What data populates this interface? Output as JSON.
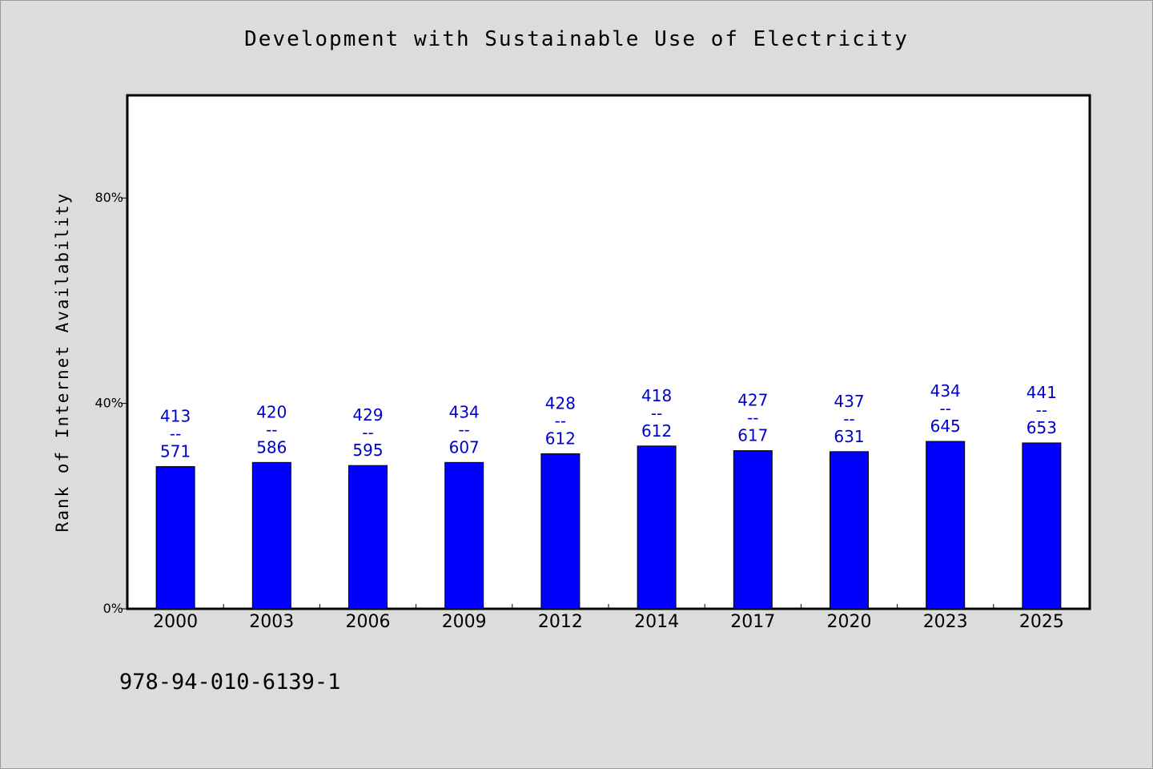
{
  "chart_data": {
    "type": "bar",
    "title": "Development with Sustainable Use of Electricity",
    "ylabel": "Rank of Internet Availability",
    "xlabel": "",
    "categories": [
      "2000",
      "2003",
      "2006",
      "2009",
      "2012",
      "2014",
      "2017",
      "2020",
      "2023",
      "2025"
    ],
    "values": [
      27.7,
      28.5,
      27.9,
      28.5,
      30.2,
      31.7,
      30.8,
      30.6,
      32.6,
      32.3
    ],
    "data_labels": [
      [
        "413",
        "--",
        "571"
      ],
      [
        "420",
        "--",
        "586"
      ],
      [
        "429",
        "--",
        "595"
      ],
      [
        "434",
        "--",
        "607"
      ],
      [
        "428",
        "--",
        "612"
      ],
      [
        "418",
        "--",
        "612"
      ],
      [
        "427",
        "--",
        "617"
      ],
      [
        "437",
        "--",
        "631"
      ],
      [
        "434",
        "--",
        "645"
      ],
      [
        "441",
        "--",
        "653"
      ]
    ],
    "yticks": [
      "0%",
      "40%",
      "80%"
    ],
    "ytick_values": [
      0,
      40,
      80
    ],
    "ylim": [
      0,
      100
    ],
    "grid": false,
    "legend": "none",
    "bar_color": "#0000ff",
    "label_color": "#0000cc"
  },
  "footer": {
    "code": "978-94-010-6139-1"
  }
}
